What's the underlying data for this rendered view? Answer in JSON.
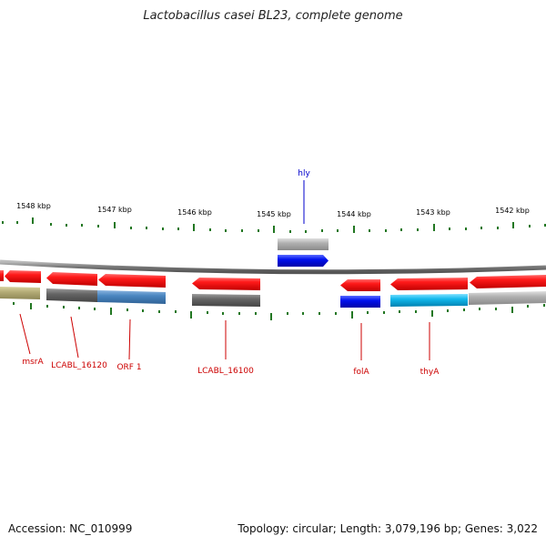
{
  "title": "Lactobacillus casei BL23, complete genome",
  "footer": {
    "accession": "Accession: NC_010999",
    "topology": "Topology: circular; Length: 3,079,196 bp; Genes: 3,022"
  },
  "scale": {
    "ticks": [
      "1548 kbp",
      "1547 kbp",
      "1546 kbp",
      "1545 kbp",
      "1544 kbp",
      "1543 kbp",
      "1542 kbp"
    ]
  },
  "gene_labels": {
    "top": [
      {
        "name": "hly",
        "color": "#0000cc"
      }
    ],
    "bottom": [
      {
        "name": "msrA",
        "color": "#cc0000"
      },
      {
        "name": "LCABL_16120",
        "color": "#cc0000"
      },
      {
        "name": "ORF 1",
        "color": "#cc0000"
      },
      {
        "name": "LCABL_16100",
        "color": "#cc0000"
      },
      {
        "name": "folA",
        "color": "#cc0000"
      },
      {
        "name": "thyA",
        "color": "#cc0000"
      }
    ]
  },
  "colors": {
    "cds_arrow": "#ee0000",
    "backbone": "#888888",
    "tick": "#227722",
    "hly_arrow": "#0022ee",
    "grey_block": "#666666",
    "olive_block": "#b7b07a",
    "steelblue_block": "#4a86c0",
    "blue_block": "#0000ee",
    "cyan_block": "#00b4e8",
    "lightgrey_block": "#aaaaaa"
  }
}
